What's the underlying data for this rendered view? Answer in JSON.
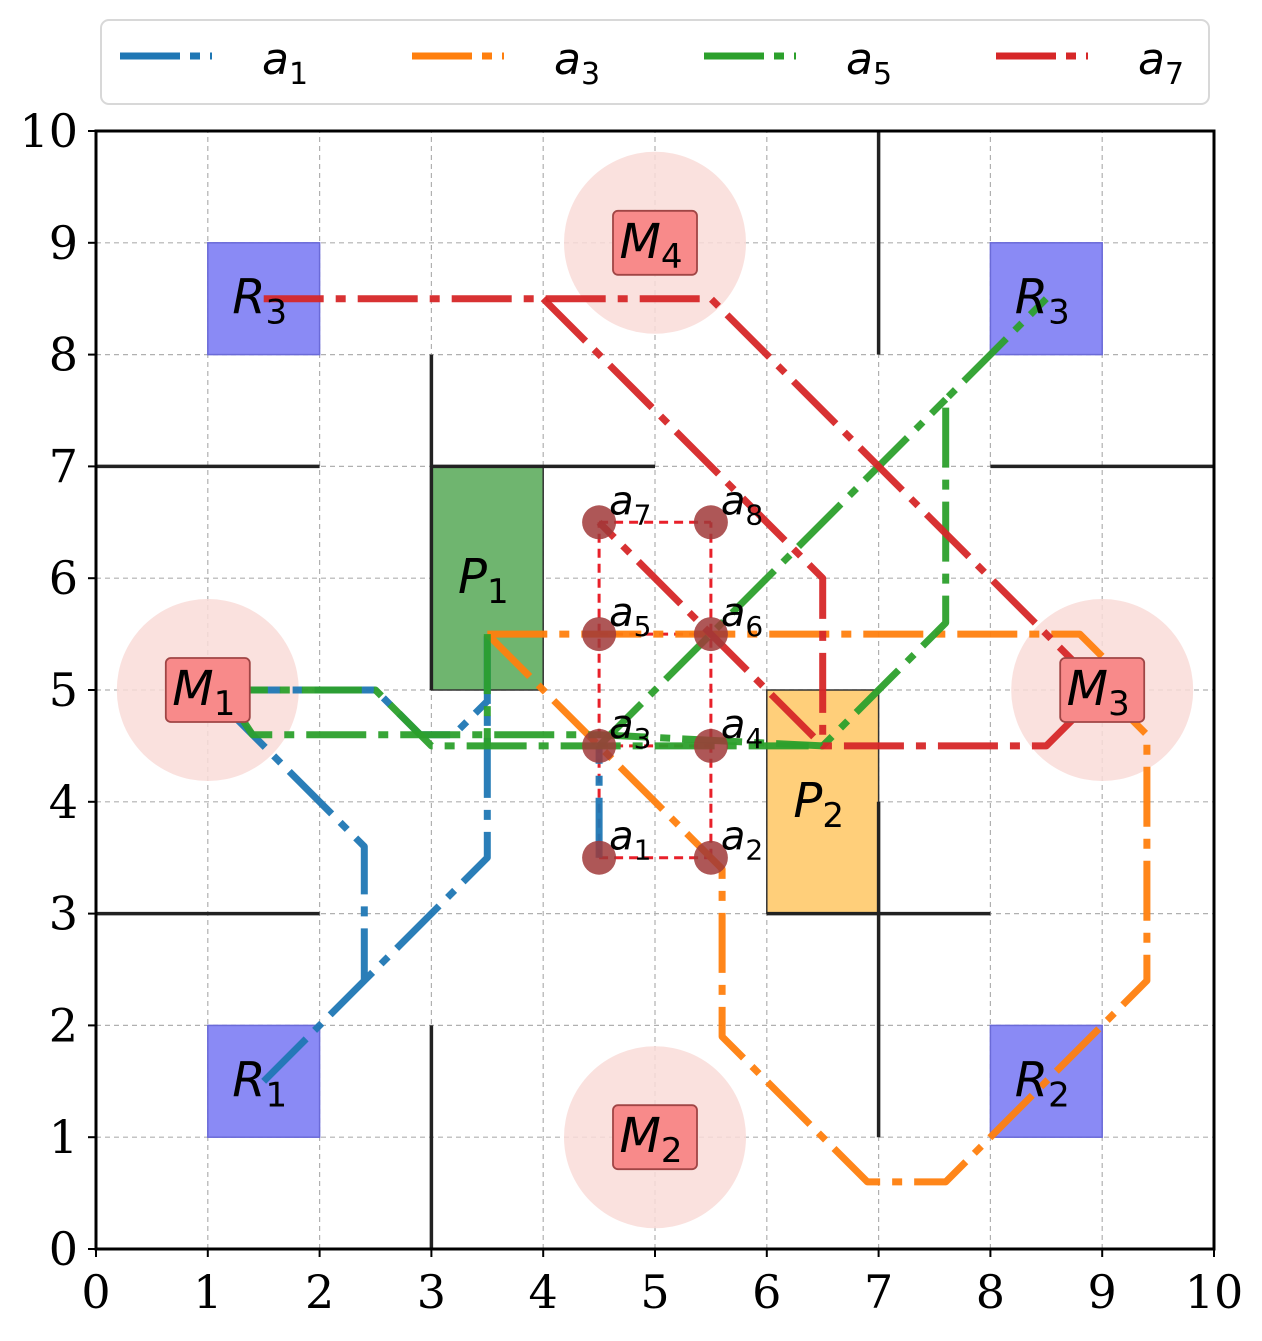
{
  "x_ticks": [
    "0",
    "1",
    "2",
    "3",
    "4",
    "5",
    "6",
    "7",
    "8",
    "9",
    "10"
  ],
  "y_ticks": [
    "0",
    "1",
    "2",
    "3",
    "4",
    "5",
    "6",
    "7",
    "8",
    "9",
    "10"
  ],
  "legend": [
    {
      "base": "a",
      "sub": "1",
      "color": "#1f77b4"
    },
    {
      "base": "a",
      "sub": "3",
      "color": "#ff7f0e"
    },
    {
      "base": "a",
      "sub": "5",
      "color": "#2ca02c"
    },
    {
      "base": "a",
      "sub": "7",
      "color": "#d62728"
    }
  ],
  "colors": {
    "blue": "#1f77b4",
    "orange": "#ff7f0e",
    "green": "#2ca02c",
    "red": "#d62728",
    "robot_fill": "#8a8af5",
    "machine_fill": "#f88a8a",
    "machine_halo": "#f9dcd8",
    "p1_fill": "#6fb56f",
    "p2_fill": "#ffcf7a",
    "agent_dot": "#a03a3a"
  },
  "robots": [
    {
      "base": "R",
      "sub": "1",
      "x": 1,
      "y": 1
    },
    {
      "base": "R",
      "sub": "2",
      "x": 8,
      "y": 1
    },
    {
      "base": "R",
      "sub": "3",
      "x": 1,
      "y": 8
    },
    {
      "base": "R",
      "sub": "3",
      "x": 8,
      "y": 8
    }
  ],
  "machines": [
    {
      "base": "M",
      "sub": "1",
      "x": 1,
      "y": 5
    },
    {
      "base": "M",
      "sub": "2",
      "x": 5,
      "y": 1
    },
    {
      "base": "M",
      "sub": "3",
      "x": 9,
      "y": 5
    },
    {
      "base": "M",
      "sub": "4",
      "x": 5,
      "y": 9
    }
  ],
  "stations": [
    {
      "base": "P",
      "sub": "1",
      "x0": 3,
      "y0": 5,
      "x1": 4,
      "y1": 7,
      "color": "#6fb56f"
    },
    {
      "base": "P",
      "sub": "2",
      "x0": 6,
      "y0": 3,
      "x1": 7,
      "y1": 5,
      "color": "#ffcf7a"
    }
  ],
  "agents": [
    {
      "base": "a",
      "sub": "1",
      "x": 4.5,
      "y": 3.5
    },
    {
      "base": "a",
      "sub": "2",
      "x": 5.5,
      "y": 3.5
    },
    {
      "base": "a",
      "sub": "3",
      "x": 4.5,
      "y": 4.5
    },
    {
      "base": "a",
      "sub": "4",
      "x": 5.5,
      "y": 4.5
    },
    {
      "base": "a",
      "sub": "5",
      "x": 4.5,
      "y": 5.5
    },
    {
      "base": "a",
      "sub": "6",
      "x": 5.5,
      "y": 5.5
    },
    {
      "base": "a",
      "sub": "7",
      "x": 4.5,
      "y": 6.5
    },
    {
      "base": "a",
      "sub": "8",
      "x": 5.5,
      "y": 6.5
    }
  ],
  "walls": [
    [
      0,
      7,
      2,
      7
    ],
    [
      3,
      7,
      5,
      7
    ],
    [
      8,
      7,
      10,
      7
    ],
    [
      0,
      3,
      2,
      3
    ],
    [
      6,
      3,
      8,
      3
    ],
    [
      3,
      8,
      3,
      5
    ],
    [
      3,
      2,
      3,
      0
    ],
    [
      7,
      10,
      7,
      8
    ],
    [
      7,
      4,
      7,
      1
    ]
  ],
  "paths": [
    {
      "color": "#1f77b4",
      "pts": [
        [
          1.5,
          1.5
        ],
        [
          2,
          2
        ],
        [
          2.4,
          2.4
        ],
        [
          3.5,
          3.5
        ],
        [
          3.5,
          5.5
        ],
        [
          3.5,
          4.9
        ],
        [
          3.2,
          4.6
        ],
        [
          2.9,
          4.6
        ],
        [
          2.5,
          5
        ],
        [
          1,
          5
        ],
        [
          2.4,
          3.6
        ],
        [
          2.4,
          2.4
        ]
      ]
    },
    {
      "color": "#1f77b4",
      "pts": [
        [
          4.5,
          3.5
        ],
        [
          4.5,
          4.5
        ]
      ]
    },
    {
      "color": "#ff7f0e",
      "pts": [
        [
          3.5,
          5.5
        ],
        [
          5.5,
          3.5
        ],
        [
          5.6,
          3.4
        ],
        [
          5.6,
          1.9
        ],
        [
          6.4,
          1.1
        ],
        [
          6.9,
          0.6
        ],
        [
          7.6,
          0.6
        ],
        [
          8.6,
          1.6
        ],
        [
          9.4,
          2.4
        ],
        [
          9.4,
          4.6
        ],
        [
          9.2,
          4.8
        ],
        [
          9,
          5
        ]
      ]
    },
    {
      "color": "#ff7f0e",
      "pts": [
        [
          3.5,
          5.5
        ],
        [
          8.8,
          5.5
        ],
        [
          9,
          5.3
        ]
      ]
    },
    {
      "color": "#2ca02c",
      "pts": [
        [
          1.2,
          4.9
        ],
        [
          1.4,
          4.6
        ],
        [
          3.0,
          4.6
        ],
        [
          4.5,
          4.6
        ],
        [
          6.5,
          4.5
        ],
        [
          7.6,
          5.6
        ],
        [
          7.6,
          7.6
        ],
        [
          8.5,
          8.5
        ]
      ]
    },
    {
      "color": "#2ca02c",
      "pts": [
        [
          1,
          5
        ],
        [
          2.5,
          5
        ],
        [
          3,
          4.5
        ],
        [
          4.5,
          4.5
        ],
        [
          6.5,
          4.5
        ]
      ]
    },
    {
      "color": "#2ca02c",
      "pts": [
        [
          4.5,
          4.5
        ],
        [
          7.6,
          7.6
        ]
      ]
    },
    {
      "color": "#2ca02c",
      "pts": [
        [
          3.5,
          5.5
        ],
        [
          3.5,
          4.5
        ]
      ]
    },
    {
      "color": "#d62728",
      "pts": [
        [
          1.5,
          8.5
        ],
        [
          5.5,
          8.5
        ],
        [
          7.9,
          6.1
        ],
        [
          9,
          5
        ],
        [
          8.5,
          4.5
        ],
        [
          6.5,
          4.5
        ],
        [
          5.5,
          5.5
        ],
        [
          4.5,
          6.5
        ]
      ]
    },
    {
      "color": "#d62728",
      "pts": [
        [
          4,
          8.5
        ],
        [
          5.4,
          7.1
        ],
        [
          6.5,
          6.0
        ],
        [
          6.5,
          4.6
        ]
      ]
    }
  ]
}
